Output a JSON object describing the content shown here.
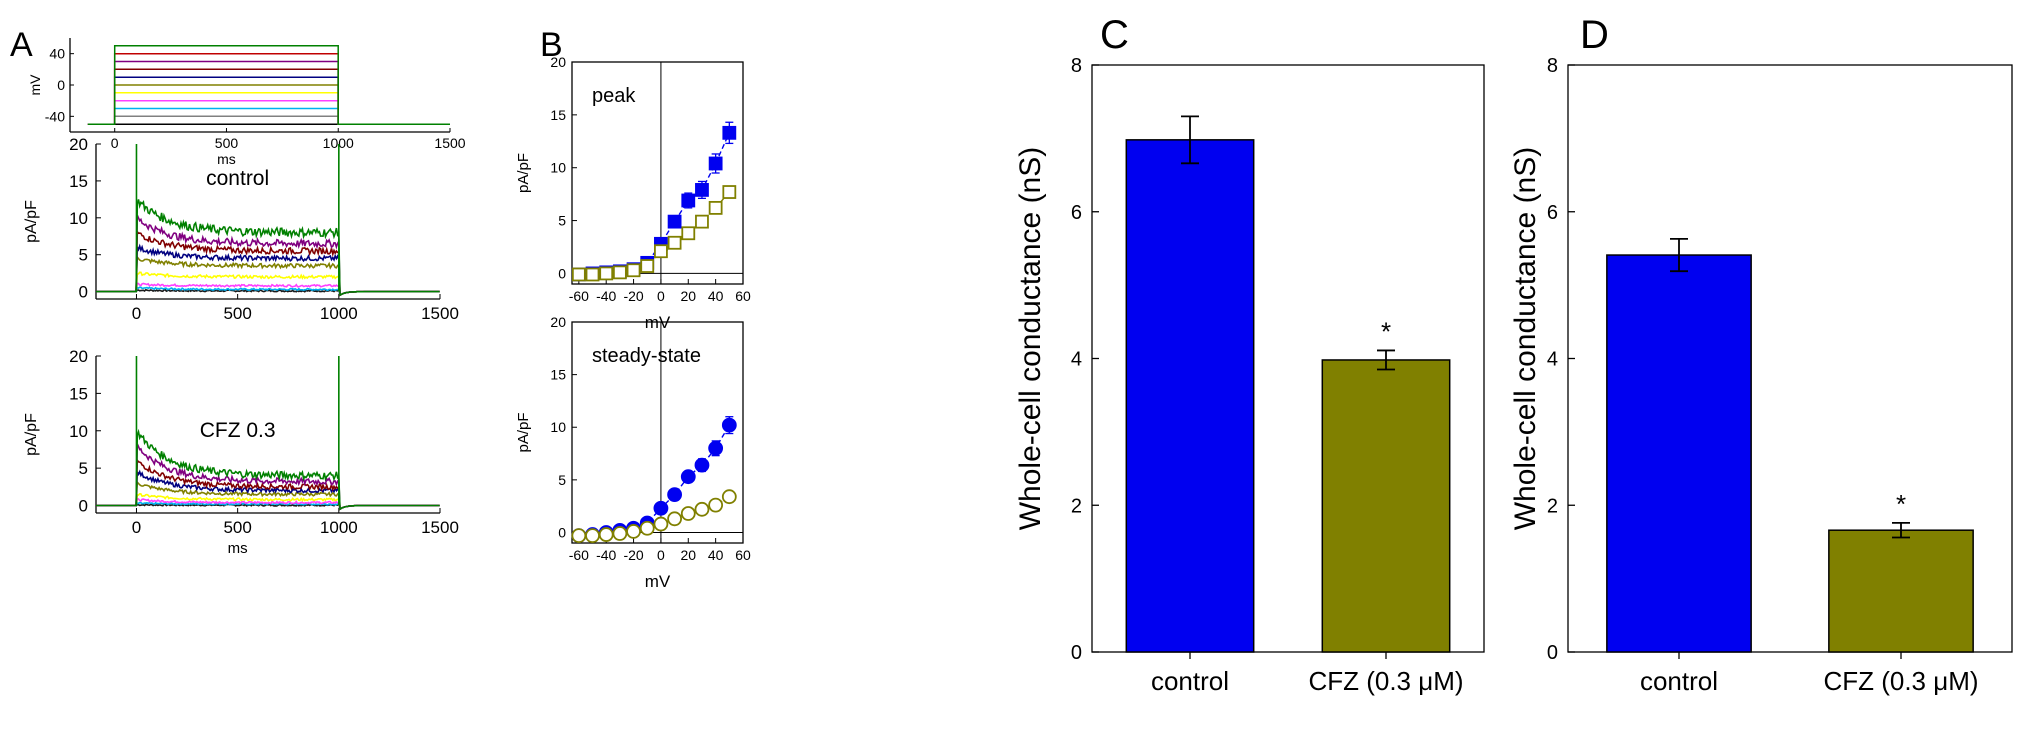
{
  "panel_labels": {
    "a": "A",
    "b": "B",
    "c": "C",
    "d": "D"
  },
  "colors": {
    "control": "#0000f0",
    "cfz": "#808000",
    "axis": "#000000",
    "traces": [
      "#1a1a1a",
      "#00b0f0",
      "#ff40ff",
      "#ffff00",
      "#808000",
      "#000080",
      "#800000",
      "#800080",
      "#008000"
    ]
  },
  "chart_data": [
    {
      "id": "A-protocol",
      "type": "line",
      "title": "",
      "xlabel": "ms",
      "ylabel": "mV",
      "xlim": [
        -200,
        1500
      ],
      "ylim": [
        -60,
        60
      ],
      "xticks": [
        0,
        500,
        1000,
        1500
      ],
      "yticks": [
        -40,
        0,
        40
      ],
      "tick_labels_y": [
        "-40",
        "0",
        "40"
      ],
      "holding_mV": -50,
      "steps_mV": [
        -50,
        -40,
        -30,
        -20,
        -10,
        0,
        10,
        20,
        30,
        40,
        50
      ],
      "step_start_ms": 0,
      "step_end_ms": 1000
    },
    {
      "id": "A-control",
      "type": "line",
      "title": "control",
      "xlabel": "",
      "ylabel": "pA/pF",
      "xlim": [
        -200,
        1500
      ],
      "ylim": [
        -1,
        20
      ],
      "xticks": [
        0,
        500,
        1000,
        1500
      ],
      "yticks": [
        0,
        5,
        10,
        15,
        20
      ],
      "tick_labels_x": [
        "0",
        "500",
        "1000",
        "1500"
      ],
      "series_peak_pA_pF": [
        0.2,
        0.5,
        1.0,
        2.5,
        4.5,
        6.0,
        8.0,
        10.0,
        12.5
      ],
      "series_steady_pA_pF": [
        0.1,
        0.3,
        0.8,
        2.0,
        3.5,
        4.5,
        5.5,
        6.5,
        8.0
      ]
    },
    {
      "id": "A-cfz",
      "type": "line",
      "title": "CFZ 0.3",
      "xlabel": "ms",
      "ylabel": "pA/pF",
      "xlim": [
        -200,
        1500
      ],
      "ylim": [
        -1,
        20
      ],
      "xticks": [
        0,
        500,
        1000,
        1500
      ],
      "yticks": [
        0,
        5,
        10,
        15,
        20
      ],
      "tick_labels_x": [
        "0",
        "500",
        "1000",
        "1500"
      ],
      "series_peak_pA_pF": [
        0.1,
        0.3,
        0.8,
        1.5,
        3.0,
        4.5,
        6.0,
        8.0,
        10.0
      ],
      "series_steady_pA_pF": [
        0.05,
        0.2,
        0.4,
        0.8,
        1.5,
        2.0,
        2.5,
        3.2,
        4.0
      ]
    },
    {
      "id": "B-peak",
      "type": "line",
      "title": "peak",
      "xlabel": "mV",
      "ylabel": "pA/pF",
      "xlim": [
        -65,
        60
      ],
      "ylim": [
        -1,
        20
      ],
      "xticks": [
        -60,
        -40,
        -20,
        0,
        20,
        40,
        60
      ],
      "yticks": [
        0,
        5,
        10,
        15,
        20
      ],
      "x": [
        -60,
        -50,
        -40,
        -30,
        -20,
        -10,
        0,
        10,
        20,
        30,
        40,
        50
      ],
      "series": [
        {
          "name": "control",
          "marker": "square-filled",
          "values": [
            -0.1,
            0.0,
            0.1,
            0.2,
            0.4,
            1.0,
            2.8,
            4.9,
            6.9,
            7.9,
            10.4,
            13.3
          ],
          "errors": [
            0.1,
            0.1,
            0.1,
            0.1,
            0.1,
            0.2,
            0.4,
            0.5,
            0.7,
            0.8,
            0.9,
            1.0
          ]
        },
        {
          "name": "CFZ 0.3",
          "marker": "square-open",
          "values": [
            -0.1,
            -0.1,
            0.0,
            0.1,
            0.3,
            0.7,
            2.1,
            2.9,
            3.8,
            4.9,
            6.2,
            7.7
          ],
          "errors": [
            0.1,
            0.1,
            0.1,
            0.1,
            0.1,
            0.2,
            0.3,
            0.3,
            0.3,
            0.4,
            0.4,
            0.5
          ]
        }
      ]
    },
    {
      "id": "B-steady",
      "type": "line",
      "title": "steady-state",
      "xlabel": "mV",
      "ylabel": "pA/pF",
      "xlim": [
        -65,
        60
      ],
      "ylim": [
        -1,
        20
      ],
      "xticks": [
        -60,
        -40,
        -20,
        0,
        20,
        40,
        60
      ],
      "yticks": [
        0,
        5,
        10,
        15,
        20
      ],
      "x": [
        -60,
        -50,
        -40,
        -30,
        -20,
        -10,
        0,
        10,
        20,
        30,
        40,
        50
      ],
      "series": [
        {
          "name": "control",
          "marker": "circle-filled",
          "values": [
            -0.3,
            -0.2,
            0.0,
            0.2,
            0.4,
            0.9,
            2.3,
            3.6,
            5.3,
            6.4,
            8.0,
            10.2
          ],
          "errors": [
            0.1,
            0.1,
            0.1,
            0.1,
            0.1,
            0.2,
            0.3,
            0.4,
            0.5,
            0.6,
            0.7,
            0.8
          ]
        },
        {
          "name": "CFZ 0.3",
          "marker": "circle-open",
          "values": [
            -0.3,
            -0.3,
            -0.2,
            -0.1,
            0.1,
            0.4,
            0.8,
            1.3,
            1.8,
            2.2,
            2.6,
            3.4
          ],
          "errors": [
            0.1,
            0.1,
            0.1,
            0.1,
            0.1,
            0.1,
            0.2,
            0.2,
            0.3,
            0.3,
            0.3,
            0.4
          ]
        }
      ]
    },
    {
      "id": "C",
      "type": "bar",
      "title": "",
      "xlabel": "",
      "ylabel": "Whole-cell conductance (nS)",
      "ylim": [
        0,
        8
      ],
      "yticks": [
        0,
        2,
        4,
        6,
        8
      ],
      "categories": [
        "control",
        "CFZ (0.3 μM)"
      ],
      "values": [
        6.98,
        3.98
      ],
      "errors": [
        0.32,
        0.13
      ],
      "annotations": [
        "",
        "*"
      ]
    },
    {
      "id": "D",
      "type": "bar",
      "title": "",
      "xlabel": "",
      "ylabel": "Whole-cell conductance (nS)",
      "ylim": [
        0,
        8
      ],
      "yticks": [
        0,
        2,
        4,
        6,
        8
      ],
      "categories": [
        "control",
        "CFZ (0.3 μM)"
      ],
      "values": [
        5.41,
        1.66
      ],
      "errors": [
        0.22,
        0.1
      ],
      "annotations": [
        "",
        "*"
      ]
    }
  ]
}
